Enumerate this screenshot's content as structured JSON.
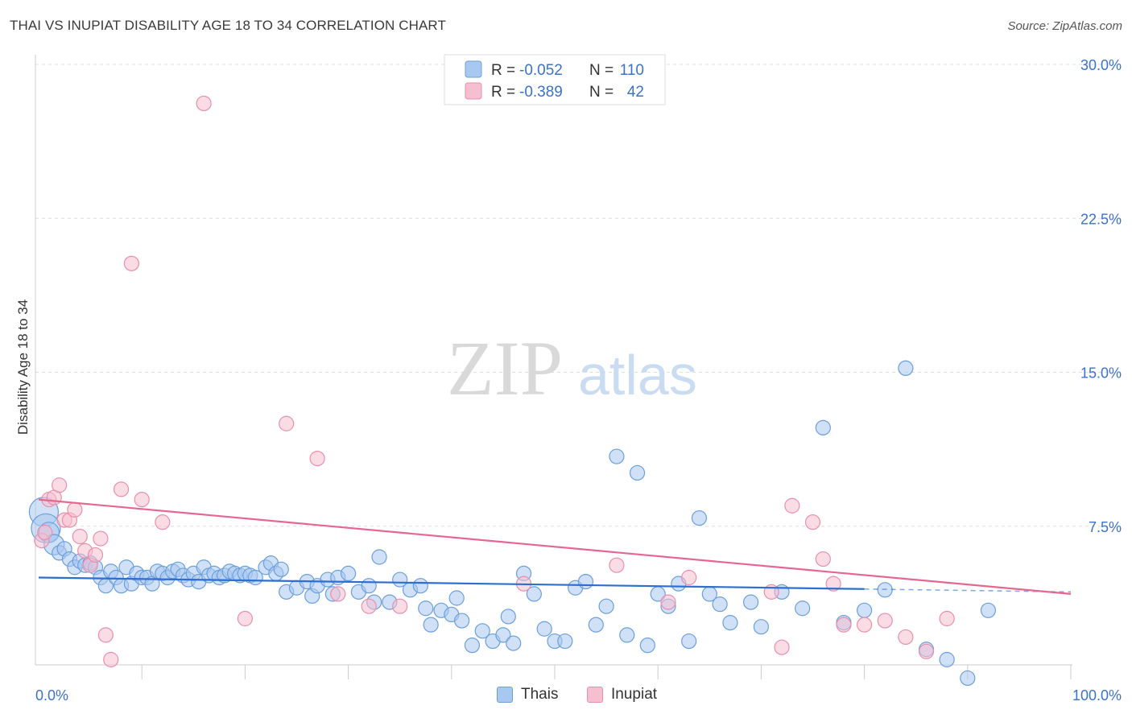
{
  "title": "THAI VS INUPIAT DISABILITY AGE 18 TO 34 CORRELATION CHART",
  "source": "Source: ZipAtlas.com",
  "watermark": {
    "part1": "ZIP",
    "part2": "atlas"
  },
  "colors": {
    "thai_fill": "#a9c8f0",
    "thai_stroke": "#6b9fdc",
    "thai_line": "#2c6fd0",
    "inupiat_fill": "#f6bfd0",
    "inupiat_stroke": "#e98fad",
    "inupiat_line": "#e5678f",
    "axis_label": "#3b73c9",
    "grid": "#dddddd"
  },
  "legend_box": {
    "rows": [
      {
        "series": "Thais",
        "r_label": "R =",
        "r_value": "-0.052",
        "n_label": "N =",
        "n_value": "110"
      },
      {
        "series": "Inupiat",
        "r_label": "R =",
        "r_value": "-0.389",
        "n_label": "N =",
        "n_value": "42"
      }
    ]
  },
  "chart_data": {
    "type": "scatter",
    "title": "THAI VS INUPIAT DISABILITY AGE 18 TO 34 CORRELATION CHART",
    "xlabel": "",
    "ylabel": "Disability Age 18 to 34",
    "xlim": [
      0,
      100
    ],
    "ylim": [
      0,
      30
    ],
    "x_tick_labels": [
      "0.0%",
      "100.0%"
    ],
    "y_tick_labels": [
      "7.5%",
      "15.0%",
      "22.5%",
      "30.0%"
    ],
    "y_ticks": [
      7.5,
      15.0,
      22.5,
      30.0
    ],
    "grid": true,
    "legend": [
      "Thais",
      "Inupiat"
    ],
    "series": [
      {
        "name": "Thais",
        "trend": {
          "x0": 0,
          "y0": 5.0,
          "x1": 100,
          "y1": 4.3,
          "solid_until": 80
        },
        "points": [
          [
            0.5,
            8.2,
            2
          ],
          [
            0.7,
            7.4,
            2
          ],
          [
            1,
            7.2,
            1.4
          ],
          [
            1.5,
            6.6,
            1.4
          ],
          [
            2,
            6.2,
            1
          ],
          [
            2.5,
            6.4,
            1
          ],
          [
            3,
            5.9,
            1
          ],
          [
            3.5,
            5.5,
            1
          ],
          [
            4,
            5.8,
            1
          ],
          [
            4.5,
            5.6,
            1
          ],
          [
            5,
            5.7,
            1
          ],
          [
            5.5,
            5.5,
            1
          ],
          [
            6,
            5.0,
            1
          ],
          [
            6.5,
            4.6,
            1
          ],
          [
            7,
            5.3,
            1
          ],
          [
            7.5,
            5.0,
            1
          ],
          [
            8,
            4.6,
            1
          ],
          [
            8.5,
            5.5,
            1
          ],
          [
            9,
            4.7,
            1
          ],
          [
            9.5,
            5.2,
            1
          ],
          [
            10,
            5.0,
            1
          ],
          [
            10.5,
            5.0,
            1
          ],
          [
            11,
            4.7,
            1
          ],
          [
            11.5,
            5.3,
            1
          ],
          [
            12,
            5.2,
            1
          ],
          [
            12.5,
            5.0,
            1
          ],
          [
            13,
            5.3,
            1
          ],
          [
            13.5,
            5.4,
            1
          ],
          [
            14,
            5.1,
            1
          ],
          [
            14.5,
            4.9,
            1
          ],
          [
            15,
            5.2,
            1
          ],
          [
            15.5,
            4.8,
            1
          ],
          [
            16,
            5.5,
            1
          ],
          [
            16.5,
            5.1,
            1
          ],
          [
            17,
            5.2,
            1
          ],
          [
            17.5,
            5.0,
            1
          ],
          [
            18,
            5.1,
            1
          ],
          [
            18.5,
            5.3,
            1
          ],
          [
            19,
            5.2,
            1
          ],
          [
            19.5,
            5.1,
            1
          ],
          [
            20,
            5.2,
            1
          ],
          [
            20.5,
            5.1,
            1
          ],
          [
            21,
            5.0,
            1
          ],
          [
            22,
            5.5,
            1
          ],
          [
            22.5,
            5.7,
            1
          ],
          [
            23,
            5.2,
            1
          ],
          [
            23.5,
            5.4,
            1
          ],
          [
            24,
            4.3,
            1
          ],
          [
            25,
            4.5,
            1
          ],
          [
            26,
            4.8,
            1
          ],
          [
            26.5,
            4.1,
            1
          ],
          [
            27,
            4.6,
            1
          ],
          [
            28,
            4.9,
            1
          ],
          [
            28.5,
            4.2,
            1
          ],
          [
            29,
            5.0,
            1
          ],
          [
            30,
            5.2,
            1
          ],
          [
            31,
            4.3,
            1
          ],
          [
            32,
            4.6,
            1
          ],
          [
            32.5,
            3.8,
            1
          ],
          [
            33,
            6.0,
            1
          ],
          [
            34,
            3.8,
            1
          ],
          [
            35,
            4.9,
            1
          ],
          [
            36,
            4.4,
            1
          ],
          [
            37,
            4.6,
            1
          ],
          [
            37.5,
            3.5,
            1
          ],
          [
            38,
            2.7,
            1
          ],
          [
            39,
            3.4,
            1
          ],
          [
            40,
            3.2,
            1
          ],
          [
            40.5,
            4.0,
            1
          ],
          [
            41,
            2.9,
            1
          ],
          [
            42,
            1.7,
            1
          ],
          [
            43,
            2.4,
            1
          ],
          [
            44,
            1.9,
            1
          ],
          [
            45,
            2.2,
            1
          ],
          [
            45.5,
            3.1,
            1
          ],
          [
            46,
            1.8,
            1
          ],
          [
            47,
            5.2,
            1
          ],
          [
            48,
            4.2,
            1
          ],
          [
            49,
            2.5,
            1
          ],
          [
            50,
            1.9,
            1
          ],
          [
            51,
            1.9,
            1
          ],
          [
            52,
            4.5,
            1
          ],
          [
            53,
            4.8,
            1
          ],
          [
            54,
            2.7,
            1
          ],
          [
            55,
            3.6,
            1
          ],
          [
            56,
            10.9,
            1
          ],
          [
            57,
            2.2,
            1
          ],
          [
            58,
            10.1,
            1
          ],
          [
            59,
            1.7,
            1
          ],
          [
            60,
            4.2,
            1
          ],
          [
            61,
            3.6,
            1
          ],
          [
            62,
            4.7,
            1
          ],
          [
            63,
            1.9,
            1
          ],
          [
            64,
            7.9,
            1
          ],
          [
            65,
            4.2,
            1
          ],
          [
            66,
            3.7,
            1
          ],
          [
            67,
            2.8,
            1
          ],
          [
            69,
            3.8,
            1
          ],
          [
            70,
            2.6,
            1
          ],
          [
            72,
            4.3,
            1
          ],
          [
            74,
            3.5,
            1
          ],
          [
            76,
            12.3,
            1
          ],
          [
            78,
            2.8,
            1
          ],
          [
            80,
            3.4,
            1
          ],
          [
            82,
            4.4,
            1
          ],
          [
            84,
            15.2,
            1
          ],
          [
            86,
            1.5,
            1
          ],
          [
            88,
            1.0,
            1
          ],
          [
            90,
            0.1,
            1
          ],
          [
            92,
            3.4,
            1
          ]
        ]
      },
      {
        "name": "Inupiat",
        "trend": {
          "x0": 0,
          "y0": 8.8,
          "x1": 100,
          "y1": 4.2
        },
        "points": [
          [
            0.3,
            6.8,
            1
          ],
          [
            0.6,
            7.2,
            1
          ],
          [
            1,
            8.8,
            1
          ],
          [
            1.5,
            8.9,
            1
          ],
          [
            2,
            9.5,
            1
          ],
          [
            2.5,
            7.8,
            1
          ],
          [
            3,
            7.8,
            1
          ],
          [
            3.5,
            8.3,
            1
          ],
          [
            4,
            7.0,
            1
          ],
          [
            4.5,
            6.3,
            1
          ],
          [
            5,
            5.6,
            1
          ],
          [
            5.5,
            6.1,
            1
          ],
          [
            6,
            6.9,
            1
          ],
          [
            6.5,
            2.2,
            1
          ],
          [
            7,
            1.0,
            1
          ],
          [
            8,
            9.3,
            1
          ],
          [
            9,
            20.3,
            1
          ],
          [
            10,
            8.8,
            1
          ],
          [
            12,
            7.7,
            1
          ],
          [
            16,
            28.1,
            1
          ],
          [
            20,
            3.0,
            1
          ],
          [
            24,
            12.5,
            1
          ],
          [
            27,
            10.8,
            1
          ],
          [
            29,
            4.2,
            1
          ],
          [
            32,
            3.6,
            1
          ],
          [
            35,
            3.6,
            1
          ],
          [
            47,
            4.7,
            1
          ],
          [
            56,
            5.6,
            1
          ],
          [
            61,
            3.8,
            1
          ],
          [
            63,
            5.0,
            1
          ],
          [
            71,
            4.3,
            1
          ],
          [
            72,
            1.6,
            1
          ],
          [
            73,
            8.5,
            1
          ],
          [
            75,
            7.7,
            1
          ],
          [
            76,
            5.9,
            1
          ],
          [
            77,
            4.7,
            1
          ],
          [
            78,
            2.7,
            1
          ],
          [
            80,
            2.7,
            1
          ],
          [
            82,
            2.9,
            1
          ],
          [
            84,
            2.1,
            1
          ],
          [
            86,
            1.4,
            1
          ],
          [
            88,
            3.0,
            1
          ]
        ]
      }
    ]
  },
  "bottom_legend": [
    {
      "label": "Thais"
    },
    {
      "label": "Inupiat"
    }
  ]
}
